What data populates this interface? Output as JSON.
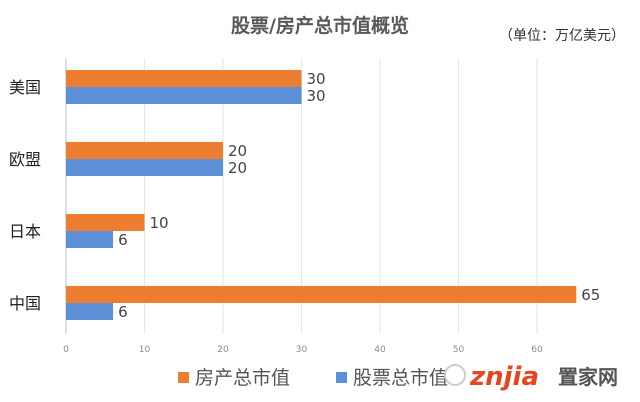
{
  "chart_data": {
    "type": "bar",
    "orientation": "horizontal",
    "title": "股票/房产总市值概览",
    "unit_note": "（单位：万亿美元）",
    "categories": [
      "美国",
      "欧盟",
      "日本",
      "中国"
    ],
    "series": [
      {
        "name": "房产总市值",
        "color": "#ed7d31",
        "values": [
          30,
          20,
          10,
          65
        ]
      },
      {
        "name": "股票总市值",
        "color": "#5b8fd6",
        "values": [
          30,
          20,
          6,
          6
        ]
      }
    ],
    "x_ticks": [
      0,
      10,
      20,
      30,
      40,
      50,
      60
    ],
    "xlim": [
      0,
      70
    ],
    "grid": "vertical",
    "legend": "bottom"
  },
  "watermark": {
    "brand": "znjia",
    "cn": "置家网"
  }
}
